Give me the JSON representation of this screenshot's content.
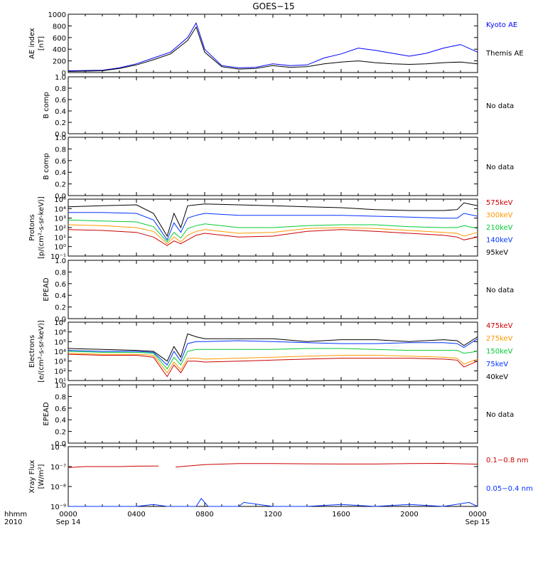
{
  "title": "GOES−15",
  "time_axis": {
    "row1": [
      "hhmm",
      "0000",
      "0400",
      "0800",
      "1200",
      "1600",
      "2000",
      "0000"
    ],
    "row2": [
      "2010",
      "Sep 14",
      "Sep 15"
    ]
  },
  "colors": {
    "kyoto": "#0000ff",
    "themis": "#000000",
    "red": "#cc0000",
    "orange": "#ff9900",
    "green": "#00cc33",
    "blue": "#0033ff",
    "black": "#000000"
  },
  "chart_data": [
    {
      "type": "line",
      "ylabel": "AE index\n[nT]",
      "ylim": [
        0,
        1000
      ],
      "yticks": [
        "0",
        "200",
        "400",
        "600",
        "800",
        "1000"
      ],
      "x_hours": [
        0,
        1,
        2,
        3,
        4,
        5,
        6,
        7,
        7.5,
        8,
        9,
        10,
        11,
        12,
        13,
        14,
        15,
        16,
        17,
        18,
        19,
        20,
        21,
        22,
        23,
        24
      ],
      "series": [
        {
          "name": "Kyoto AE",
          "color": "kyoto",
          "values": [
            30,
            35,
            40,
            80,
            150,
            250,
            350,
            600,
            850,
            400,
            120,
            80,
            90,
            150,
            120,
            130,
            250,
            320,
            420,
            380,
            330,
            280,
            330,
            420,
            480,
            350
          ]
        },
        {
          "name": "Themis AE",
          "color": "themis",
          "values": [
            20,
            25,
            30,
            70,
            130,
            220,
            320,
            550,
            780,
            350,
            100,
            60,
            70,
            120,
            90,
            100,
            150,
            180,
            200,
            170,
            150,
            140,
            150,
            170,
            180,
            150
          ]
        }
      ]
    },
    {
      "type": "line",
      "ylabel": "B comp",
      "ylim": [
        0,
        1
      ],
      "yticks": [
        "0.0",
        "0.2",
        "0.4",
        "0.6",
        "0.8",
        "1.0"
      ],
      "note": "No data",
      "series": []
    },
    {
      "type": "line",
      "ylabel": "B comp",
      "ylim": [
        0,
        1
      ],
      "yticks": [
        "0.0",
        "0.2",
        "0.4",
        "0.6",
        "0.8",
        "1.0"
      ],
      "note": "No data",
      "series": []
    },
    {
      "type": "line",
      "ylabel": "Protons\n[p/(cm²-s-sr-keV)]",
      "log": true,
      "ylim_exp": [
        -1,
        5
      ],
      "yticks": [
        "10⁻¹",
        "10⁰",
        "10¹",
        "10²",
        "10³",
        "10⁴",
        "10⁵"
      ],
      "x_hours": [
        0,
        2,
        4,
        5,
        5.8,
        6.2,
        6.6,
        7,
        7.5,
        8,
        10,
        12,
        14,
        16,
        18,
        20,
        22,
        22.8,
        23.2,
        24
      ],
      "series": [
        {
          "name": "575keV",
          "color": "red",
          "values": [
            1.8,
            1.7,
            1.5,
            1.0,
            0.1,
            0.6,
            0.3,
            0.7,
            1.2,
            1.4,
            1.0,
            1.1,
            1.6,
            1.8,
            1.6,
            1.4,
            1.2,
            1.0,
            0.7,
            1.0
          ]
        },
        {
          "name": "300keV",
          "color": "orange",
          "values": [
            2.3,
            2.2,
            2.0,
            1.6,
            0.3,
            1.0,
            0.5,
            1.2,
            1.6,
            1.8,
            1.4,
            1.5,
            1.9,
            2.0,
            1.9,
            1.7,
            1.5,
            1.4,
            1.1,
            1.5
          ]
        },
        {
          "name": "210keV",
          "color": "green",
          "values": [
            2.8,
            2.7,
            2.6,
            2.1,
            0.5,
            1.5,
            0.9,
            1.9,
            2.2,
            2.4,
            2.0,
            2.0,
            2.2,
            2.3,
            2.3,
            2.1,
            2.0,
            2.0,
            2.2,
            1.9
          ]
        },
        {
          "name": "140keV",
          "color": "blue",
          "values": [
            3.6,
            3.6,
            3.5,
            2.8,
            0.7,
            2.5,
            1.5,
            3.0,
            3.3,
            3.5,
            3.3,
            3.3,
            3.3,
            3.3,
            3.2,
            3.1,
            3.0,
            3.0,
            3.5,
            3.2
          ]
        },
        {
          "name": "95keV",
          "color": "black",
          "values": [
            4.2,
            4.3,
            4.4,
            3.5,
            1.1,
            3.5,
            2.0,
            4.3,
            4.4,
            4.5,
            4.4,
            4.3,
            4.2,
            4.1,
            3.9,
            3.8,
            3.8,
            3.9,
            4.6,
            4.3
          ]
        }
      ]
    },
    {
      "type": "line",
      "ylabel": "EPEAD",
      "ylim": [
        0,
        1
      ],
      "yticks": [
        "0.0",
        "0.2",
        "0.4",
        "0.6",
        "0.8",
        "1.0"
      ],
      "note": "No data",
      "series": []
    },
    {
      "type": "line",
      "ylabel": "Electrons\n[e/(cm²-s-sr-keV)]",
      "log": true,
      "ylim_exp": [
        1,
        7
      ],
      "yticks": [
        "10¹",
        "10²",
        "10³",
        "10⁴",
        "10⁵",
        "10⁶",
        "10⁷"
      ],
      "x_hours": [
        0,
        2,
        4,
        5,
        5.8,
        6.2,
        6.6,
        7,
        7.5,
        8,
        10,
        12,
        14,
        16,
        18,
        20,
        22,
        22.8,
        23.2,
        24
      ],
      "series": [
        {
          "name": "475keV",
          "color": "red",
          "values": [
            3.7,
            3.6,
            3.6,
            3.4,
            1.4,
            2.6,
            1.8,
            3.0,
            3.0,
            2.9,
            3.0,
            3.1,
            3.2,
            3.3,
            3.3,
            3.3,
            3.2,
            3.1,
            2.4,
            3.0
          ]
        },
        {
          "name": "275keV",
          "color": "orange",
          "values": [
            3.8,
            3.7,
            3.7,
            3.6,
            1.8,
            2.9,
            2.1,
            3.3,
            3.3,
            3.2,
            3.3,
            3.4,
            3.5,
            3.6,
            3.6,
            3.5,
            3.4,
            3.3,
            2.7,
            3.2
          ]
        },
        {
          "name": "150keV",
          "color": "green",
          "values": [
            4.0,
            3.9,
            3.9,
            3.8,
            2.2,
            3.4,
            2.6,
            4.0,
            4.2,
            4.2,
            4.2,
            4.2,
            4.3,
            4.3,
            4.2,
            4.1,
            4.1,
            4.1,
            3.8,
            4.0
          ]
        },
        {
          "name": "75keV",
          "color": "blue",
          "values": [
            4.1,
            4.0,
            4.0,
            3.9,
            2.6,
            4.0,
            3.0,
            4.8,
            5.0,
            5.0,
            5.1,
            5.0,
            4.9,
            4.8,
            4.8,
            4.9,
            4.9,
            4.8,
            4.4,
            5.3
          ]
        },
        {
          "name": "40keV",
          "color": "black",
          "values": [
            4.3,
            4.2,
            4.1,
            4.0,
            3.0,
            4.5,
            3.4,
            5.8,
            5.5,
            5.3,
            5.3,
            5.3,
            5.0,
            5.2,
            5.2,
            5.0,
            5.2,
            5.1,
            4.6,
            5.5
          ]
        }
      ]
    },
    {
      "type": "line",
      "ylabel": "EPEAD",
      "ylim": [
        0,
        1
      ],
      "yticks": [
        "0.0",
        "0.2",
        "0.4",
        "0.6",
        "0.8",
        "1.0"
      ],
      "note": "No data",
      "series": []
    },
    {
      "type": "line",
      "ylabel": "Xray Flux\n[W/m²]",
      "log": true,
      "ylim_exp": [
        -9,
        -6
      ],
      "yticks": [
        "10⁻⁹",
        "10⁻⁸",
        "10⁻⁷",
        "10⁻⁶"
      ],
      "series": [
        {
          "name": "0.1−0.8 nm",
          "color": "red",
          "x_hours": [
            0,
            1,
            2,
            3,
            4,
            5,
            5.3,
            null,
            6.3,
            8,
            10,
            12,
            14,
            16,
            18,
            20,
            22,
            24
          ],
          "values": [
            -7.05,
            -7.0,
            -7.0,
            -7.0,
            -6.98,
            -6.97,
            -6.97,
            null,
            -7.02,
            -6.9,
            -6.85,
            -6.85,
            -6.86,
            -6.87,
            -6.87,
            -6.85,
            -6.84,
            -6.88
          ]
        },
        {
          "name": "0.05−0.4 nm",
          "color": "blue",
          "x_hours": [
            0,
            1,
            2,
            3,
            4,
            5,
            5.8,
            7.5,
            7.8,
            8.2,
            10,
            10.3,
            12,
            14,
            16,
            18,
            20,
            22,
            23.5,
            24
          ],
          "values": [
            -9,
            -9,
            -9,
            -9,
            -9,
            -8.9,
            -9,
            -9,
            -8.6,
            -9,
            -9,
            -8.8,
            -9,
            -9,
            -8.9,
            -9,
            -8.9,
            -9,
            -8.8,
            -9
          ]
        }
      ]
    }
  ]
}
